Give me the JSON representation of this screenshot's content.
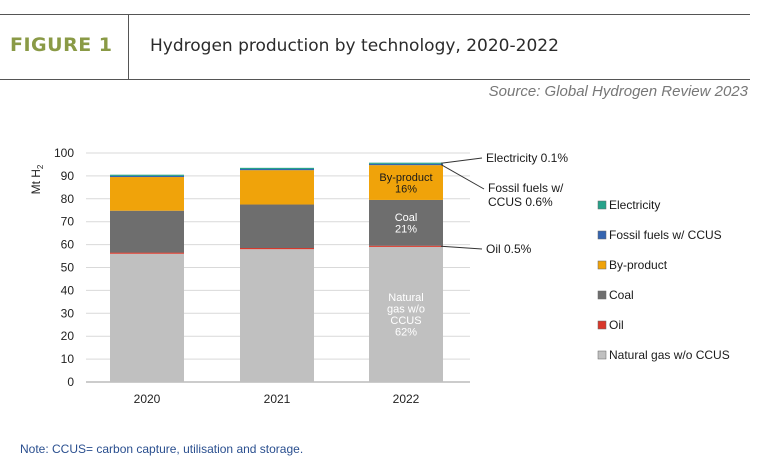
{
  "header": {
    "figure_label": "FIGURE 1",
    "title": "Hydrogen production by technology, 2020-2022",
    "source": "Source: Global Hydrogen Review 2023"
  },
  "note": "Note: CCUS= carbon capture, utilisation and storage.",
  "chart_data": {
    "type": "bar",
    "stacked": true,
    "ylabel_main": "Mt H",
    "ylabel_sub": "2",
    "ylim": [
      0,
      100
    ],
    "yticks": [
      0,
      10,
      20,
      30,
      40,
      50,
      60,
      70,
      80,
      90,
      100
    ],
    "grid": true,
    "categories": [
      "2020",
      "2021",
      "2022"
    ],
    "series": [
      {
        "name": "Natural gas w/o CCUS",
        "color": "#c0c0c0",
        "values": [
          56.0,
          58.0,
          59.0
        ]
      },
      {
        "name": "Oil",
        "color": "#d9372a",
        "values": [
          0.5,
          0.5,
          0.5
        ]
      },
      {
        "name": "Coal",
        "color": "#6e6e6e",
        "values": [
          18.3,
          19.0,
          20.0
        ]
      },
      {
        "name": "By-product",
        "color": "#f0a30a",
        "values": [
          14.7,
          15.0,
          15.2
        ]
      },
      {
        "name": "Fossil fuels w/ CCUS",
        "color": "#3565b0",
        "values": [
          0.5,
          0.5,
          0.55
        ]
      },
      {
        "name": "Electricity",
        "color": "#27a28a",
        "values": [
          0.1,
          0.1,
          0.1
        ]
      }
    ],
    "legend_order": [
      "Electricity",
      "Fossil fuels w/ CCUS",
      "By-product",
      "Coal",
      "Oil",
      "Natural gas w/o CCUS"
    ],
    "legend_position": "right",
    "inbar_labels": [
      {
        "series": "By-product",
        "category": "2022",
        "lines": [
          "By-product",
          "16%"
        ],
        "color": "#1a1a1a"
      },
      {
        "series": "Coal",
        "category": "2022",
        "lines": [
          "Coal",
          "21%"
        ],
        "color": "#ffffff"
      },
      {
        "series": "Natural gas w/o CCUS",
        "category": "2022",
        "lines": [
          "Natural",
          "gas w/o",
          "CCUS",
          "62%"
        ],
        "color": "#ffffff"
      }
    ],
    "callouts": [
      {
        "series": "Electricity",
        "category": "2022",
        "lines": [
          "Electricity 0.1%"
        ]
      },
      {
        "series": "Fossil fuels w/ CCUS",
        "category": "2022",
        "lines": [
          "Fossil fuels w/",
          "CCUS 0.6%"
        ]
      },
      {
        "series": "Oil",
        "category": "2022",
        "lines": [
          "Oil 0.5%"
        ]
      }
    ]
  }
}
